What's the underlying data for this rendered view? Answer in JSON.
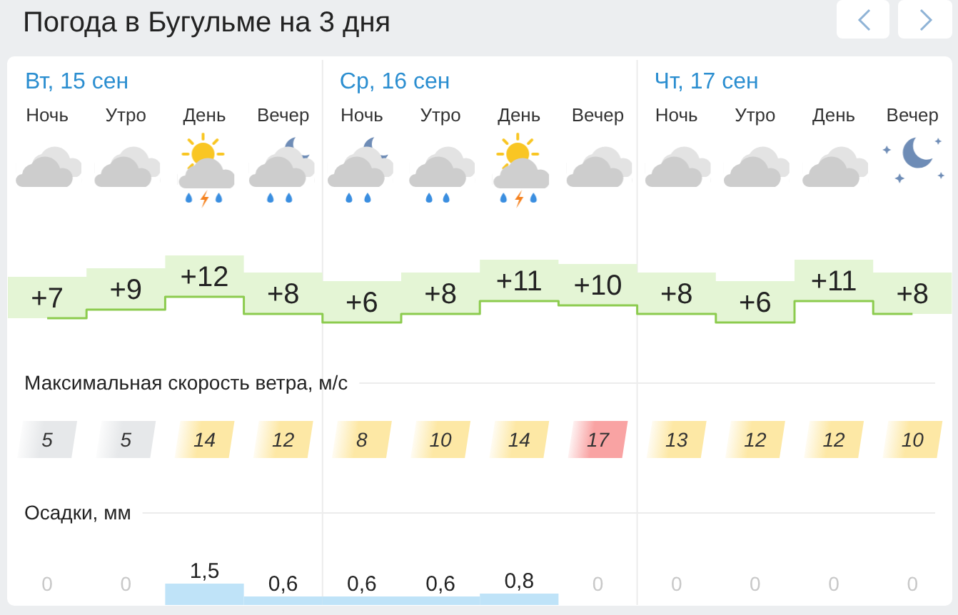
{
  "chart_data": [
    {
      "type": "step",
      "title": "Погода в Бугульме на 3 дня",
      "annotations": [
        "Вт, 15 сен",
        "Ср, 16 сен",
        "Чт, 17 сен"
      ],
      "categories": [
        "Ночь",
        "Утро",
        "День",
        "Вечер",
        "Ночь",
        "Утро",
        "День",
        "Вечер",
        "Ночь",
        "Утро",
        "День",
        "Вечер"
      ],
      "values": [
        7,
        9,
        12,
        8,
        6,
        8,
        11,
        10,
        8,
        6,
        11,
        8
      ],
      "value_labels": [
        "+7",
        "+9",
        "+12",
        "+8",
        "+6",
        "+8",
        "+11",
        "+10",
        "+8",
        "+6",
        "+11",
        "+8"
      ],
      "color": "#8ccb4e",
      "tick_labels": "x"
    },
    {
      "type": "heatmap",
      "title": "Максимальная скорость ветра, м/с",
      "categories": [
        null,
        null,
        null,
        null,
        null,
        null,
        null,
        null,
        null,
        null,
        null,
        null
      ],
      "y_categories": [
        null
      ],
      "cells": [
        [
          5,
          5,
          14,
          12,
          8,
          10,
          14,
          17,
          13,
          12,
          12,
          10
        ]
      ],
      "colors": [
        "#e6e8ea",
        "#e6e8ea",
        "#fde8a5",
        "#fde8a5",
        "#fde8a5",
        "#fde8a5",
        "#fde8a5",
        "#f9a3a3",
        "#fde8a5",
        "#fde8a5",
        "#fde8a5",
        "#fde8a5"
      ],
      "data_labels": true
    },
    {
      "type": "bar",
      "title": "Осадки, мм",
      "categories": [
        null,
        null,
        null,
        null,
        null,
        null,
        null,
        null,
        null,
        null,
        null,
        null
      ],
      "values": [
        0,
        0,
        1.5,
        0.6,
        0.6,
        0.6,
        0.8,
        0,
        0,
        0,
        0,
        0
      ],
      "value_labels": [
        "0",
        "0",
        "1,5",
        "0,6",
        "0,6",
        "0,6",
        "0,8",
        "0",
        "0",
        "0",
        "0",
        "0"
      ],
      "color": "#bfe3f8"
    }
  ]
}
